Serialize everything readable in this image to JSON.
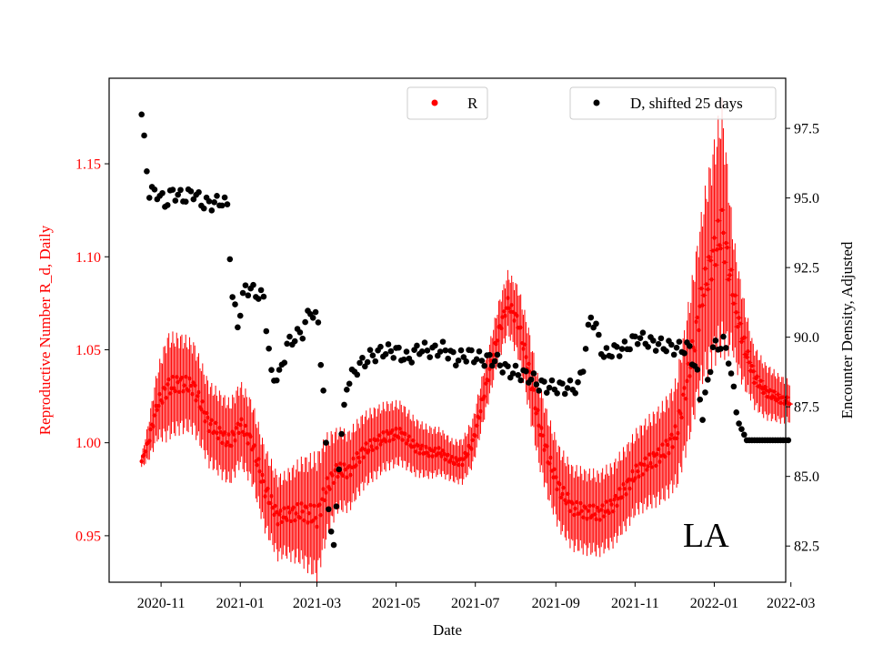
{
  "chart_data": {
    "type": "scatter",
    "xlabel": "Date",
    "y_left_label": "Reproductive Number R_d, Daily",
    "y_right_label": "Encounter Density, Adjusted",
    "annotation": "LA",
    "colors": {
      "r_series": "#ff0000",
      "d_series": "#000000",
      "left_axis": "#ff0000",
      "right_axis": "#000000"
    },
    "x_range_days": [
      -25,
      496
    ],
    "x_ticks": [
      {
        "label": "2020-11",
        "day": 15
      },
      {
        "label": "2021-01",
        "day": 76
      },
      {
        "label": "2021-03",
        "day": 135
      },
      {
        "label": "2021-05",
        "day": 196
      },
      {
        "label": "2021-07",
        "day": 257
      },
      {
        "label": "2021-09",
        "day": 319
      },
      {
        "label": "2021-11",
        "day": 380
      },
      {
        "label": "2022-01",
        "day": 441
      },
      {
        "label": "2022-03",
        "day": 500
      }
    ],
    "y_left": {
      "ylim": [
        0.925,
        1.196
      ],
      "ticks": [
        "0.95",
        "1.00",
        "1.05",
        "1.10",
        "1.15"
      ]
    },
    "y_right": {
      "ylim": [
        81.2,
        99.3
      ],
      "ticks": [
        "82.5",
        "85.0",
        "87.5",
        "90.0",
        "92.5",
        "95.0",
        "97.5"
      ]
    },
    "legend": [
      {
        "label": "R",
        "marker": "dot",
        "color": "#ff0000",
        "position": "top-center"
      },
      {
        "label": "D, shifted 25 days",
        "marker": "dot",
        "color": "#000000",
        "position": "top-right"
      }
    ],
    "series": [
      {
        "name": "R",
        "axis": "left",
        "start_day": 0,
        "end_day": 499,
        "keypoints": [
          [
            0,
            0.99
          ],
          [
            5,
            1.0
          ],
          [
            12,
            1.02
          ],
          [
            20,
            1.03
          ],
          [
            30,
            1.032
          ],
          [
            40,
            1.03
          ],
          [
            52,
            1.01
          ],
          [
            60,
            1.005
          ],
          [
            68,
            1.0
          ],
          [
            76,
            1.01
          ],
          [
            85,
            1.0
          ],
          [
            95,
            0.975
          ],
          [
            105,
            0.96
          ],
          [
            115,
            0.962
          ],
          [
            125,
            0.963
          ],
          [
            135,
            0.96
          ],
          [
            142,
            0.975
          ],
          [
            150,
            0.985
          ],
          [
            160,
            0.985
          ],
          [
            170,
            0.995
          ],
          [
            180,
            1.0
          ],
          [
            190,
            1.004
          ],
          [
            200,
            1.005
          ],
          [
            210,
            0.998
          ],
          [
            220,
            0.995
          ],
          [
            230,
            0.995
          ],
          [
            240,
            0.99
          ],
          [
            247,
            0.99
          ],
          [
            255,
            1.0
          ],
          [
            265,
            1.03
          ],
          [
            275,
            1.06
          ],
          [
            282,
            1.075
          ],
          [
            290,
            1.065
          ],
          [
            298,
            1.04
          ],
          [
            306,
            1.01
          ],
          [
            314,
            0.99
          ],
          [
            322,
            0.975
          ],
          [
            332,
            0.965
          ],
          [
            342,
            0.963
          ],
          [
            352,
            0.962
          ],
          [
            362,
            0.966
          ],
          [
            372,
            0.975
          ],
          [
            382,
            0.985
          ],
          [
            392,
            0.99
          ],
          [
            402,
            0.995
          ],
          [
            412,
            1.005
          ],
          [
            422,
            1.04
          ],
          [
            432,
            1.08
          ],
          [
            440,
            1.1
          ],
          [
            447,
            1.115
          ],
          [
            452,
            1.095
          ],
          [
            458,
            1.07
          ],
          [
            465,
            1.05
          ],
          [
            472,
            1.035
          ],
          [
            480,
            1.028
          ],
          [
            490,
            1.024
          ],
          [
            499,
            1.022
          ]
        ],
        "error": [
          [
            0,
            0.003
          ],
          [
            10,
            0.015
          ],
          [
            20,
            0.025
          ],
          [
            50,
            0.02
          ],
          [
            90,
            0.02
          ],
          [
            110,
            0.02
          ],
          [
            135,
            0.03
          ],
          [
            150,
            0.02
          ],
          [
            200,
            0.015
          ],
          [
            240,
            0.01
          ],
          [
            260,
            0.012
          ],
          [
            282,
            0.015
          ],
          [
            300,
            0.02
          ],
          [
            340,
            0.02
          ],
          [
            380,
            0.02
          ],
          [
            410,
            0.025
          ],
          [
            430,
            0.04
          ],
          [
            447,
            0.06
          ],
          [
            455,
            0.03
          ],
          [
            470,
            0.015
          ],
          [
            499,
            0.01
          ]
        ]
      },
      {
        "name": "D, shifted 25 days",
        "axis": "right",
        "start_day": 0,
        "end_day": 499,
        "keypoints": [
          [
            0,
            98.0
          ],
          [
            3,
            96.5
          ],
          [
            6,
            95.2
          ],
          [
            12,
            95.2
          ],
          [
            18,
            94.8
          ],
          [
            24,
            95.2
          ],
          [
            32,
            95.0
          ],
          [
            40,
            95.2
          ],
          [
            47,
            94.8
          ],
          [
            55,
            94.8
          ],
          [
            62,
            94.9
          ],
          [
            66,
            94.7
          ],
          [
            70,
            91.4
          ],
          [
            74,
            90.5
          ],
          [
            80,
            91.8
          ],
          [
            88,
            91.6
          ],
          [
            94,
            91.4
          ],
          [
            100,
            88.6
          ],
          [
            106,
            88.6
          ],
          [
            112,
            89.7
          ],
          [
            118,
            90.0
          ],
          [
            124,
            90.2
          ],
          [
            130,
            91.0
          ],
          [
            136,
            90.5
          ],
          [
            140,
            88.0
          ],
          [
            144,
            84.0
          ],
          [
            148,
            82.3
          ],
          [
            152,
            85.5
          ],
          [
            158,
            88.3
          ],
          [
            166,
            88.9
          ],
          [
            176,
            89.3
          ],
          [
            186,
            89.5
          ],
          [
            196,
            89.5
          ],
          [
            205,
            89.2
          ],
          [
            214,
            89.6
          ],
          [
            224,
            89.5
          ],
          [
            233,
            89.6
          ],
          [
            242,
            89.2
          ],
          [
            252,
            89.4
          ],
          [
            262,
            89.2
          ],
          [
            272,
            89.2
          ],
          [
            282,
            88.8
          ],
          [
            290,
            88.7
          ],
          [
            298,
            88.6
          ],
          [
            306,
            88.3
          ],
          [
            316,
            88.2
          ],
          [
            326,
            88.2
          ],
          [
            336,
            88.2
          ],
          [
            340,
            89.0
          ],
          [
            346,
            90.8
          ],
          [
            350,
            90.3
          ],
          [
            356,
            89.3
          ],
          [
            362,
            89.5
          ],
          [
            372,
            89.6
          ],
          [
            382,
            90.0
          ],
          [
            392,
            89.8
          ],
          [
            402,
            89.7
          ],
          [
            412,
            89.6
          ],
          [
            422,
            89.6
          ],
          [
            428,
            88.6
          ],
          [
            432,
            87.2
          ],
          [
            440,
            89.6
          ],
          [
            448,
            89.8
          ],
          [
            452,
            89.3
          ],
          [
            456,
            88.0
          ],
          [
            460,
            86.9
          ],
          [
            466,
            86.3
          ],
          [
            476,
            86.3
          ],
          [
            486,
            86.3
          ],
          [
            499,
            86.3
          ]
        ]
      }
    ]
  }
}
